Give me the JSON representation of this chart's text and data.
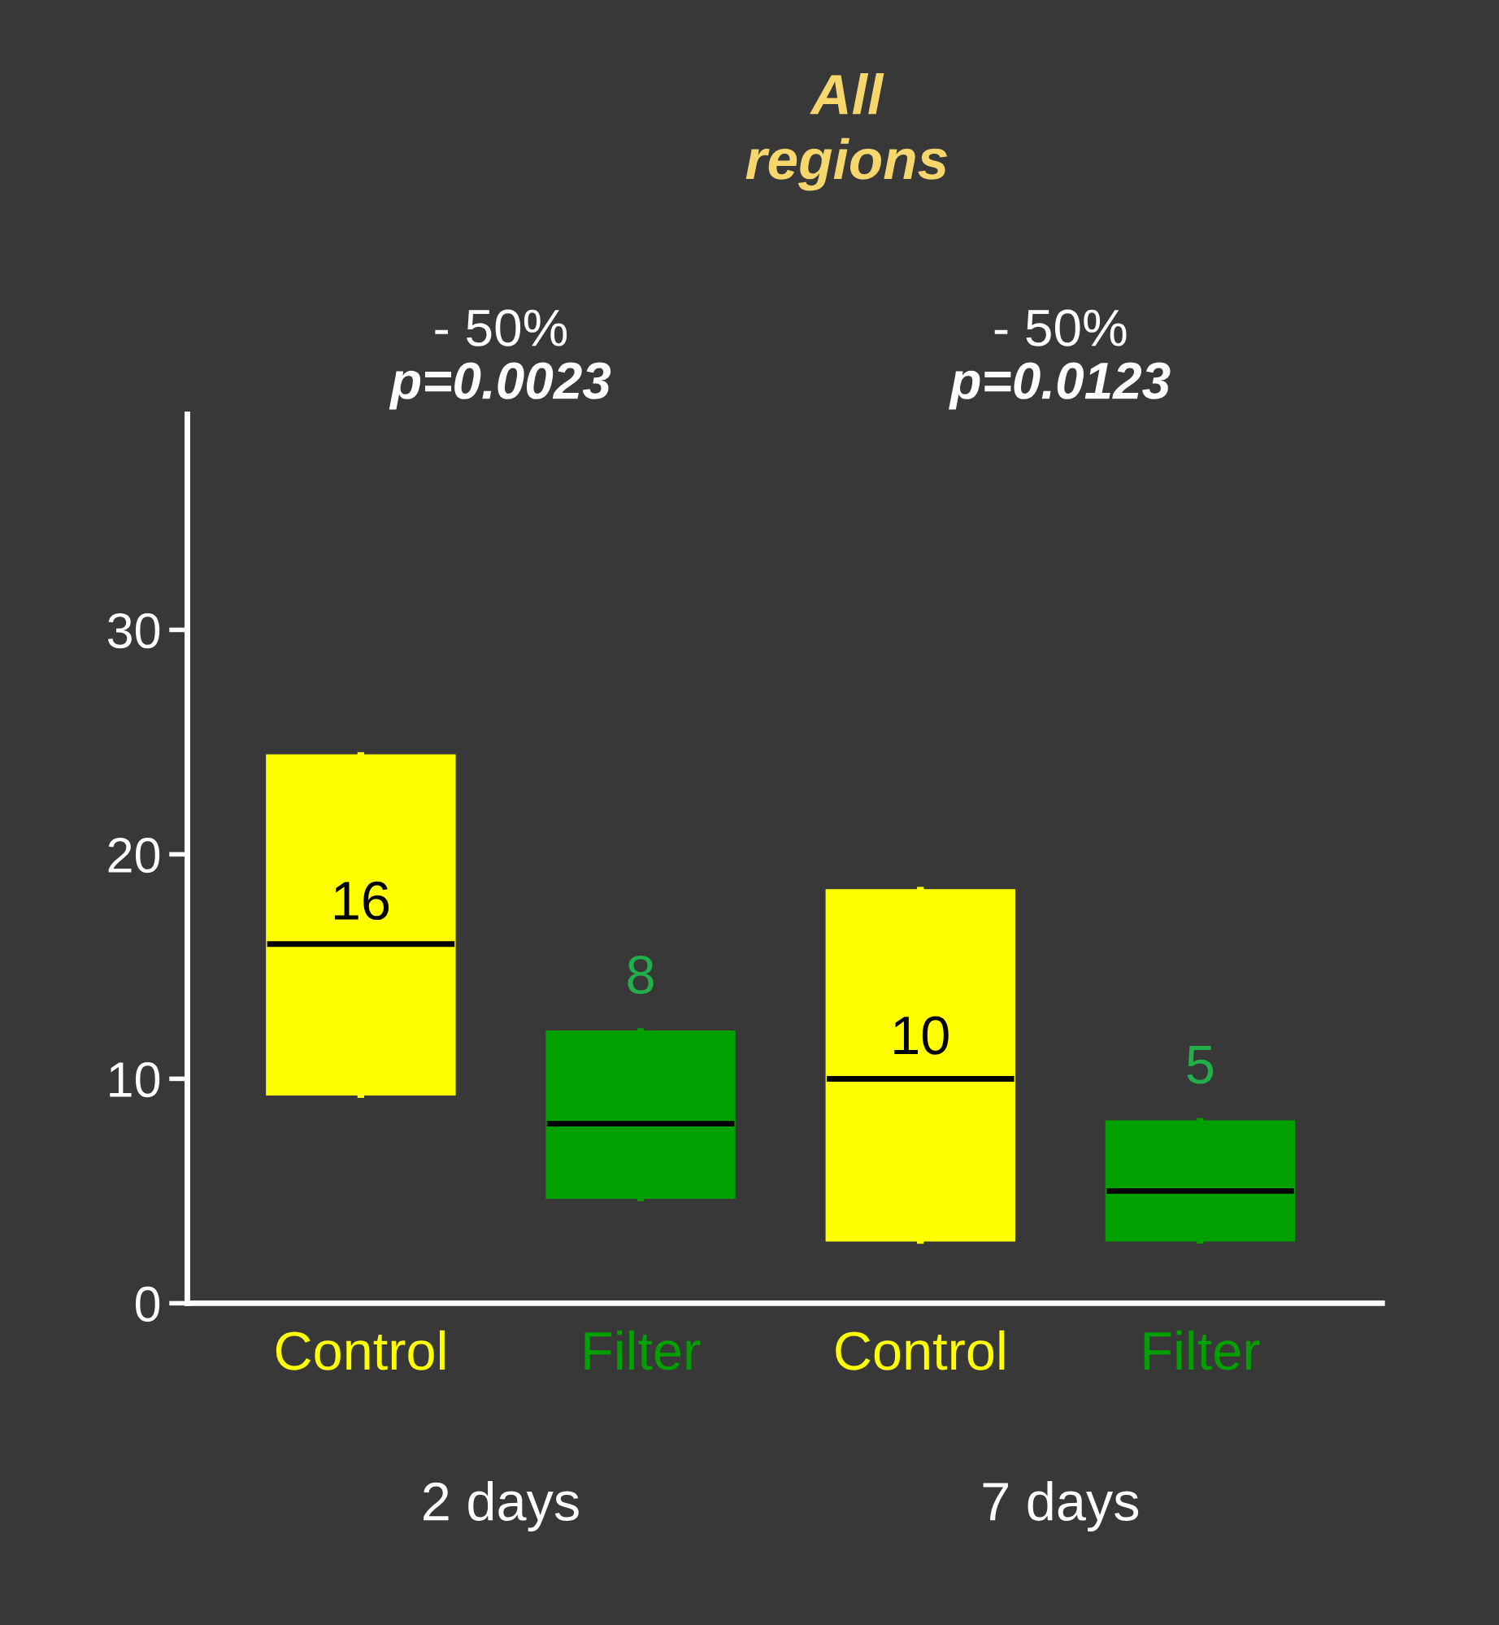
{
  "chart_data": {
    "type": "box",
    "title": "All\nregions",
    "categories": [
      "Control",
      "Filter",
      "Control",
      "Filter"
    ],
    "boxes": [
      {
        "low": 9.3,
        "q1": 9.3,
        "median": 16,
        "q3": 24.4,
        "high": 24.4
      },
      {
        "low": 4.7,
        "q1": 4.7,
        "median": 8,
        "q3": 12.1,
        "high": 12.1
      },
      {
        "low": 2.8,
        "q1": 2.8,
        "median": 10,
        "q3": 18.4,
        "high": 18.4
      },
      {
        "low": 2.8,
        "q1": 2.8,
        "median": 5,
        "q3": 8.1,
        "high": 8.1
      }
    ],
    "colors": [
      "#ffff00",
      "#00a000",
      "#ffff00",
      "#00a000"
    ],
    "value_labels": [
      "16",
      "8",
      "10",
      "5"
    ],
    "ylim": [
      0,
      39.6
    ],
    "yticks": [
      0,
      10,
      20,
      30
    ],
    "annotations": [
      "- 50%\np=0.0023",
      "- 50%\np=0.0123",
      "2 days",
      "7 days"
    ]
  }
}
